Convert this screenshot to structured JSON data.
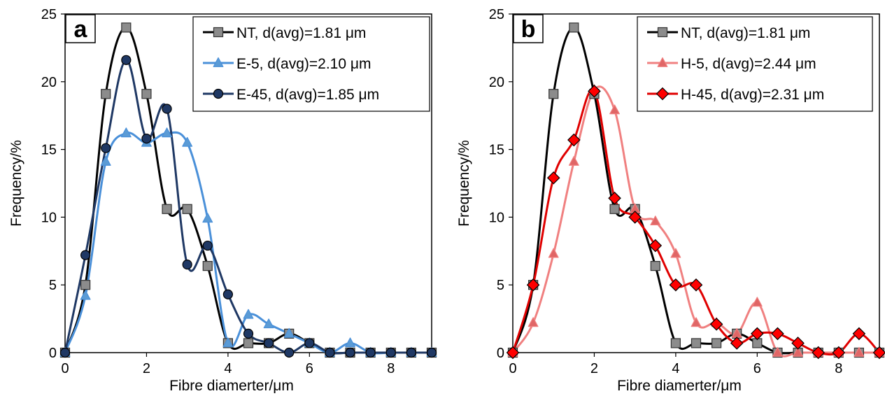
{
  "chart_data": [
    {
      "type": "line",
      "panel_label": "a",
      "xlabel": "Fibre diamerter/μm",
      "ylabel": "Frequency/%",
      "xlim": [
        0,
        9
      ],
      "ylim": [
        0,
        25
      ],
      "xticks": [
        0,
        2,
        4,
        6,
        8
      ],
      "yticks": [
        0,
        5,
        10,
        15,
        20,
        25
      ],
      "legend_position": "top-right",
      "x": [
        0,
        0.5,
        1,
        1.5,
        2,
        2.5,
        3,
        3.5,
        4,
        4.5,
        5,
        5.5,
        6,
        6.5,
        7,
        7.5,
        8,
        8.5,
        9
      ],
      "series": [
        {
          "name": "NT, d(avg)=1.81 μm",
          "color": "#000000",
          "marker": "square",
          "marker_fill": "#8c8c8c",
          "values": [
            0,
            5.0,
            19.1,
            24.0,
            19.1,
            10.6,
            10.6,
            6.4,
            0.7,
            0.7,
            0.7,
            1.4,
            0.7,
            0,
            0,
            0,
            0,
            0,
            0
          ]
        },
        {
          "name": "E-5, d(avg)=2.10 μm",
          "color": "#4a90d9",
          "marker": "triangle",
          "marker_fill": "#5b9bd5",
          "values": [
            0,
            4.2,
            14.1,
            16.2,
            15.5,
            16.2,
            15.5,
            9.9,
            0.7,
            2.8,
            2.1,
            1.4,
            0.7,
            0,
            0.7,
            0,
            0,
            0,
            0
          ]
        },
        {
          "name": "E-45, d(avg)=1.85 μm",
          "color": "#1f3864",
          "marker": "circle",
          "marker_fill": "#1f3864",
          "values": [
            0,
            7.2,
            15.1,
            21.6,
            15.8,
            18.0,
            6.5,
            7.9,
            4.3,
            1.4,
            0.7,
            0,
            0.7,
            0,
            0,
            0,
            0,
            0,
            0
          ]
        }
      ]
    },
    {
      "type": "line",
      "panel_label": "b",
      "xlabel": "Fibre diamerter/μm",
      "ylabel": "Frequency/%",
      "xlim": [
        0,
        9
      ],
      "ylim": [
        0,
        25
      ],
      "xticks": [
        0,
        2,
        4,
        6,
        8
      ],
      "yticks": [
        0,
        5,
        10,
        15,
        20,
        25
      ],
      "legend_position": "top-right",
      "x": [
        0,
        0.5,
        1,
        1.5,
        2,
        2.5,
        3,
        3.5,
        4,
        4.5,
        5,
        5.5,
        6,
        6.5,
        7,
        7.5,
        8,
        8.5,
        9
      ],
      "series": [
        {
          "name": "NT, d(avg)=1.81 μm",
          "color": "#000000",
          "marker": "square",
          "marker_fill": "#8c8c8c",
          "values": [
            0,
            5.0,
            19.1,
            24.0,
            19.1,
            10.6,
            10.6,
            6.4,
            0.7,
            0.7,
            0.7,
            1.4,
            0.7,
            0,
            0,
            0,
            0,
            0,
            0
          ]
        },
        {
          "name": "H-5, d(avg)=2.44 μm",
          "color": "#f08080",
          "marker": "triangle",
          "marker_fill": "#e06666",
          "values": [
            0,
            2.2,
            7.3,
            14.1,
            19.4,
            17.9,
            10.6,
            9.7,
            7.3,
            2.2,
            2.2,
            1.4,
            3.7,
            0,
            0,
            0,
            0,
            0,
            0
          ]
        },
        {
          "name": "H-45, d(avg)=2.31 μm",
          "color": "#e00000",
          "marker": "diamond",
          "marker_fill": "#ff0000",
          "values": [
            0,
            5.0,
            12.9,
            15.7,
            19.3,
            11.4,
            10.0,
            7.9,
            5.0,
            5.0,
            2.1,
            0.7,
            1.4,
            1.4,
            0.7,
            0,
            0,
            1.4,
            0
          ]
        }
      ]
    }
  ]
}
